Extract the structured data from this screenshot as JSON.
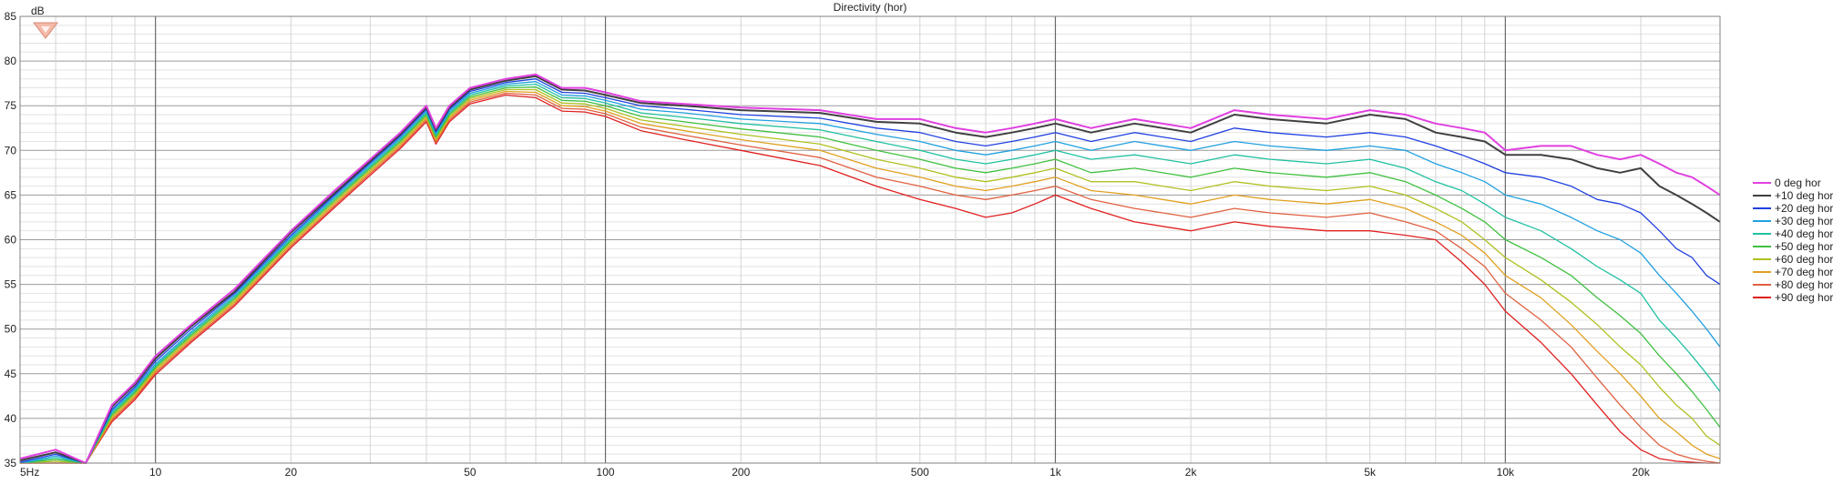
{
  "chart_data": {
    "type": "line",
    "title": "Directivity (hor)",
    "ylabel": "dB",
    "xlabel": "",
    "x_scale": "log",
    "xlim": [
      5,
      30000
    ],
    "ylim": [
      35,
      85
    ],
    "grid": true,
    "legend_position": "right",
    "x_tick_labels": [
      {
        "value": 5,
        "label": "5Hz"
      },
      {
        "value": 10,
        "label": "10"
      },
      {
        "value": 20,
        "label": "20"
      },
      {
        "value": 50,
        "label": "50"
      },
      {
        "value": 100,
        "label": "100"
      },
      {
        "value": 200,
        "label": "200"
      },
      {
        "value": 500,
        "label": "500"
      },
      {
        "value": 1000,
        "label": "1k"
      },
      {
        "value": 2000,
        "label": "2k"
      },
      {
        "value": 5000,
        "label": "5k"
      },
      {
        "value": 10000,
        "label": "10k"
      },
      {
        "value": 20000,
        "label": "20k"
      }
    ],
    "y_ticks": [
      35,
      40,
      45,
      50,
      55,
      60,
      65,
      70,
      75,
      80,
      85
    ],
    "x": [
      5,
      6,
      7,
      8,
      9,
      10,
      12,
      15,
      20,
      25,
      30,
      35,
      40,
      42,
      45,
      50,
      60,
      70,
      80,
      90,
      100,
      120,
      150,
      200,
      300,
      400,
      500,
      600,
      700,
      800,
      900,
      1000,
      1200,
      1500,
      2000,
      2500,
      3000,
      4000,
      5000,
      6000,
      7000,
      8000,
      9000,
      10000,
      12000,
      14000,
      16000,
      18000,
      20000,
      22000,
      24000,
      26000,
      28000,
      30000
    ],
    "series": [
      {
        "name": "0 deg hor",
        "color": "#e040e0",
        "values": [
          35.5,
          36.5,
          35,
          41.5,
          44,
          47,
          50.5,
          54.5,
          61,
          65.5,
          69,
          72,
          75,
          72.5,
          75,
          77,
          78,
          78.5,
          77,
          77,
          76.5,
          75.5,
          75.2,
          74.8,
          74.5,
          73.5,
          73.5,
          72.5,
          72,
          72.5,
          73,
          73.5,
          72.5,
          73.5,
          72.5,
          74.5,
          74,
          73.5,
          74.5,
          74,
          73,
          72.5,
          72,
          70,
          70.5,
          70.5,
          69.5,
          69,
          69.5,
          68.5,
          67.5,
          67,
          66,
          65
        ]
      },
      {
        "name": "+10 deg hor",
        "color": "#404040",
        "values": [
          35.3,
          36.2,
          34.8,
          41.3,
          43.8,
          46.7,
          50.3,
          54.2,
          60.8,
          65.2,
          68.8,
          71.8,
          74.8,
          72.3,
          74.8,
          76.8,
          77.8,
          78.3,
          76.8,
          76.7,
          76.2,
          75.3,
          75,
          74.5,
          74.2,
          73.2,
          73,
          72,
          71.5,
          72,
          72.5,
          73,
          72,
          73,
          72,
          74,
          73.5,
          73,
          74,
          73.5,
          72,
          71.5,
          71,
          69.5,
          69.5,
          69,
          68,
          67.5,
          68,
          66,
          65,
          64,
          63,
          62
        ]
      },
      {
        "name": "+20 deg hor",
        "color": "#2040e0",
        "values": [
          35.1,
          36,
          34.6,
          41,
          43.5,
          46.4,
          50,
          54,
          60.5,
          65,
          68.6,
          71.6,
          74.6,
          72.1,
          74.6,
          76.6,
          77.6,
          78,
          76.5,
          76.4,
          75.9,
          75,
          74.6,
          74,
          73.6,
          72.5,
          72,
          71,
          70.5,
          71,
          71.5,
          72,
          71,
          72,
          71,
          72.5,
          72,
          71.5,
          72,
          71.5,
          70.5,
          69.5,
          68.5,
          67.5,
          67,
          66,
          64.5,
          64,
          63,
          61,
          59,
          58,
          56,
          55
        ]
      },
      {
        "name": "+30 deg hor",
        "color": "#20a0e0",
        "values": [
          34.9,
          35.8,
          34.4,
          40.8,
          43.3,
          46.1,
          49.7,
          53.8,
          60.3,
          64.8,
          68.4,
          71.4,
          74.4,
          71.9,
          74.4,
          76.4,
          77.4,
          77.7,
          76.2,
          76.1,
          75.6,
          74.6,
          74.2,
          73.5,
          73,
          71.8,
          71,
          70,
          69.5,
          70,
          70.5,
          71,
          70,
          71,
          70,
          71,
          70.5,
          70,
          70.5,
          70,
          68.5,
          67.5,
          66.5,
          65,
          64,
          62.5,
          61,
          60,
          58.5,
          56,
          54,
          52,
          50,
          48
        ]
      },
      {
        "name": "+40 deg hor",
        "color": "#20c0a0",
        "values": [
          34.7,
          35.6,
          34.2,
          40.6,
          43.1,
          45.9,
          49.5,
          53.6,
          60.1,
          64.6,
          68.2,
          71.2,
          74.2,
          71.7,
          74.2,
          76.2,
          77.2,
          77.4,
          75.9,
          75.8,
          75.3,
          74.2,
          73.7,
          73,
          72.3,
          71,
          70,
          69,
          68.5,
          69,
          69.5,
          70,
          69,
          69.5,
          68.5,
          69.5,
          69,
          68.5,
          69,
          68,
          66.5,
          65.5,
          64,
          62.5,
          61,
          59,
          57,
          55.5,
          54,
          51,
          49,
          47,
          45,
          43
        ]
      },
      {
        "name": "+50 deg hor",
        "color": "#40c040",
        "values": [
          34.5,
          35.4,
          34,
          40.4,
          42.9,
          45.7,
          49.3,
          53.4,
          59.9,
          64.4,
          68,
          71,
          74,
          71.5,
          74,
          76,
          77,
          77.1,
          75.6,
          75.5,
          75,
          73.8,
          73.2,
          72.4,
          71.5,
          70,
          69,
          68,
          67.5,
          68,
          68.5,
          69,
          67.5,
          68,
          67,
          68,
          67.5,
          67,
          67.5,
          66.5,
          65,
          63.5,
          62,
          60,
          58,
          56,
          53.5,
          51.5,
          49.5,
          47,
          45,
          43,
          41,
          39
        ]
      },
      {
        "name": "+60 deg hor",
        "color": "#b0c020",
        "values": [
          34.3,
          35.2,
          33.8,
          40.2,
          42.7,
          45.5,
          49.1,
          53.2,
          59.7,
          64.2,
          67.8,
          70.8,
          73.8,
          71.3,
          73.8,
          75.8,
          76.8,
          76.8,
          75.3,
          75.2,
          74.7,
          73.4,
          72.7,
          71.8,
          70.7,
          69,
          68,
          67,
          66.5,
          67,
          67.5,
          68,
          66.5,
          66.5,
          65.5,
          66.5,
          66,
          65.5,
          66,
          65,
          63.5,
          62,
          60,
          58,
          55.5,
          53,
          50.5,
          48,
          46,
          43.5,
          41.5,
          40,
          38,
          37
        ]
      },
      {
        "name": "+70 deg hor",
        "color": "#e0a020",
        "values": [
          34.1,
          35,
          33.6,
          40,
          42.5,
          45.3,
          48.9,
          53,
          59.5,
          64,
          67.6,
          70.6,
          73.6,
          71.1,
          73.6,
          75.6,
          76.6,
          76.5,
          75,
          74.9,
          74.4,
          73,
          72.2,
          71.2,
          70,
          68,
          67,
          66,
          65.5,
          66,
          66.5,
          67,
          65.5,
          65,
          64,
          65,
          64.5,
          64,
          64.5,
          63.5,
          62,
          60.5,
          58.5,
          56,
          53.5,
          50.5,
          47.5,
          45,
          42.5,
          40,
          38.5,
          37,
          36,
          35.5
        ]
      },
      {
        "name": "+80 deg hor",
        "color": "#e06040",
        "values": [
          33.9,
          34.8,
          33.4,
          39.8,
          42.3,
          45.1,
          48.7,
          52.8,
          59.3,
          63.8,
          67.4,
          70.4,
          73.4,
          70.9,
          73.4,
          75.4,
          76.4,
          76.2,
          74.7,
          74.6,
          74.1,
          72.6,
          71.7,
          70.6,
          69.2,
          67,
          66,
          65,
          64.5,
          65,
          65.5,
          66,
          64.5,
          63.5,
          62.5,
          63.5,
          63,
          62.5,
          63,
          62,
          61,
          59,
          57,
          54,
          51,
          48,
          44.5,
          41.5,
          39,
          37,
          36,
          35.5,
          35.2,
          35
        ]
      },
      {
        "name": "+90 deg hor",
        "color": "#e02020",
        "values": [
          33.7,
          34.6,
          33.2,
          39.6,
          42.1,
          44.9,
          48.5,
          52.6,
          59.1,
          63.6,
          67.2,
          70.2,
          73.2,
          70.7,
          73.2,
          75.2,
          76.2,
          75.9,
          74.4,
          74.3,
          73.8,
          72.2,
          71.2,
          70,
          68.3,
          66,
          64.5,
          63.5,
          62.5,
          63,
          64,
          65,
          63.5,
          62,
          61,
          62,
          61.5,
          61,
          61,
          60.5,
          60,
          57.5,
          55,
          52,
          48.5,
          45,
          41.5,
          38.5,
          36.5,
          35.5,
          35.2,
          35.1,
          35,
          35
        ]
      }
    ]
  }
}
